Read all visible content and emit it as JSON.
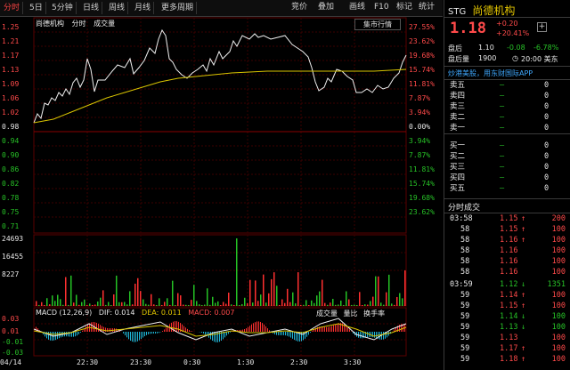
{
  "toolbar": {
    "tabs": [
      "分时",
      "5日",
      "5分钟",
      "日线",
      "周线",
      "月线",
      "更多周期"
    ],
    "buttons": [
      "竞价",
      "叠加",
      "画线",
      "F10",
      "标记",
      "统计",
      "操作"
    ]
  },
  "main_chart": {
    "legend": [
      "尚德机构",
      "分时",
      "成交量"
    ],
    "market_dropdown": "集市行情",
    "price_axis": [
      "1.25",
      "1.21",
      "1.17",
      "1.13",
      "1.09",
      "1.06",
      "1.02",
      "0.98",
      "0.94",
      "0.90",
      "0.86",
      "0.82",
      "0.78",
      "0.75",
      "0.71"
    ],
    "pct_axis": [
      "27.55%",
      "23.62%",
      "19.68%",
      "15.74%",
      "11.81%",
      "7.87%",
      "3.94%",
      "0.00%",
      "3.94%",
      "7.87%",
      "11.81%",
      "15.74%",
      "19.68%",
      "23.62%"
    ]
  },
  "volume_chart": {
    "axis": [
      "24693",
      "16455",
      "8227"
    ]
  },
  "macd": {
    "title": "MACD (12,26,9)",
    "dif": "DIF: 0.014",
    "dea": "DEA: 0.011",
    "macd": "MACD: 0.007",
    "buttons": [
      "成交量",
      "量比",
      "换手率"
    ],
    "axis": [
      "0.03",
      "0.01",
      "-0.01",
      "-0.03"
    ]
  },
  "time_axis": [
    "04/14",
    "22:30",
    "23:30",
    "0:30",
    "1:30",
    "2:30",
    "3:30"
  ],
  "quote": {
    "ticker": "STG",
    "name": "尚德机构",
    "price": "1.18",
    "change": "+0.20",
    "change_pct": "+20.41%",
    "stats_row1": [
      "盘后",
      "1.10",
      "-0.08",
      "-6.78%"
    ],
    "stats_row2": [
      "盘后量",
      "1900",
      "20:00 美东"
    ],
    "notice": "炒港美股，用东财国际APP"
  },
  "order_book": [
    {
      "label": "卖五",
      "price": "—",
      "vol": "0"
    },
    {
      "label": "卖四",
      "price": "—",
      "vol": "0"
    },
    {
      "label": "卖三",
      "price": "—",
      "vol": "0"
    },
    {
      "label": "卖二",
      "price": "—",
      "vol": "0"
    },
    {
      "label": "卖一",
      "price": "—",
      "vol": "0"
    },
    {
      "label": "买一",
      "price": "—",
      "vol": "0"
    },
    {
      "label": "买二",
      "price": "—",
      "vol": "0"
    },
    {
      "label": "买三",
      "price": "—",
      "vol": "0"
    },
    {
      "label": "买四",
      "price": "—",
      "vol": "0"
    },
    {
      "label": "买五",
      "price": "—",
      "vol": "0"
    }
  ],
  "trades_header": "分时成交",
  "trades": [
    {
      "time": "03:58",
      "price": "1.15",
      "dir": "↑",
      "vol": "200"
    },
    {
      "time": "58",
      "price": "1.15",
      "dir": "↑",
      "vol": "100"
    },
    {
      "time": "58",
      "price": "1.16",
      "dir": "↑",
      "vol": "100"
    },
    {
      "time": "58",
      "price": "1.16",
      "dir": "",
      "vol": "100"
    },
    {
      "time": "58",
      "price": "1.16",
      "dir": "",
      "vol": "100"
    },
    {
      "time": "58",
      "price": "1.16",
      "dir": "",
      "vol": "100"
    },
    {
      "time": "03:59",
      "price": "1.12",
      "dir": "↓",
      "vol": "1351"
    },
    {
      "time": "59",
      "price": "1.14",
      "dir": "↑",
      "vol": "100"
    },
    {
      "time": "59",
      "price": "1.15",
      "dir": "↑",
      "vol": "100"
    },
    {
      "time": "59",
      "price": "1.14",
      "dir": "↓",
      "vol": "100"
    },
    {
      "time": "59",
      "price": "1.13",
      "dir": "↓",
      "vol": "100"
    },
    {
      "time": "59",
      "price": "1.13",
      "dir": "",
      "vol": "100"
    },
    {
      "time": "59",
      "price": "1.17",
      "dir": "↑",
      "vol": "100"
    },
    {
      "time": "59",
      "price": "1.18",
      "dir": "↑",
      "vol": "100"
    }
  ]
}
